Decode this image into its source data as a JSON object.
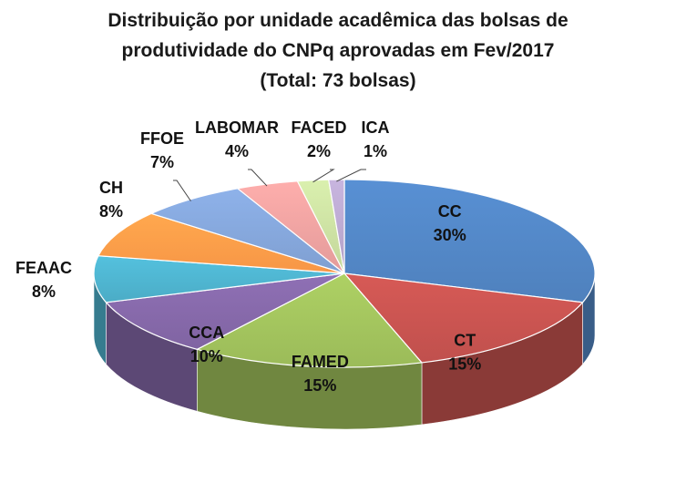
{
  "title": {
    "line1": "Distribuição por unidade acadêmica das bolsas de",
    "line2": "produtividade do CNPq aprovadas em Fev/2017",
    "line3": "(Total: 73 bolsas)"
  },
  "chart_data": {
    "type": "pie",
    "style": "3d",
    "title": "Distribuição por unidade acadêmica das bolsas de produtividade do CNPq aprovadas em Fev/2017 (Total: 73 bolsas)",
    "slices": [
      {
        "label": "CC",
        "value": 30,
        "value_label": "30%",
        "color": "#4F81BD"
      },
      {
        "label": "CT",
        "value": 15,
        "value_label": "15%",
        "color": "#C0504D"
      },
      {
        "label": "FAMED",
        "value": 15,
        "value_label": "15%",
        "color": "#9BBB59"
      },
      {
        "label": "CCA",
        "value": 10,
        "value_label": "10%",
        "color": "#8064A2"
      },
      {
        "label": "FEAAC",
        "value": 8,
        "value_label": "8%",
        "color": "#4BACC6"
      },
      {
        "label": "CH",
        "value": 8,
        "value_label": "8%",
        "color": "#F79646"
      },
      {
        "label": "FFOE",
        "value": 7,
        "value_label": "7%",
        "color": "#7F9FD1"
      },
      {
        "label": "LABOMAR",
        "value": 4,
        "value_label": "4%",
        "color": "#E39B9A"
      },
      {
        "label": "FACED",
        "value": 2,
        "value_label": "2%",
        "color": "#C3D69B"
      },
      {
        "label": "ICA",
        "value": 1,
        "value_label": "1%",
        "color": "#B3A2C7"
      }
    ]
  }
}
